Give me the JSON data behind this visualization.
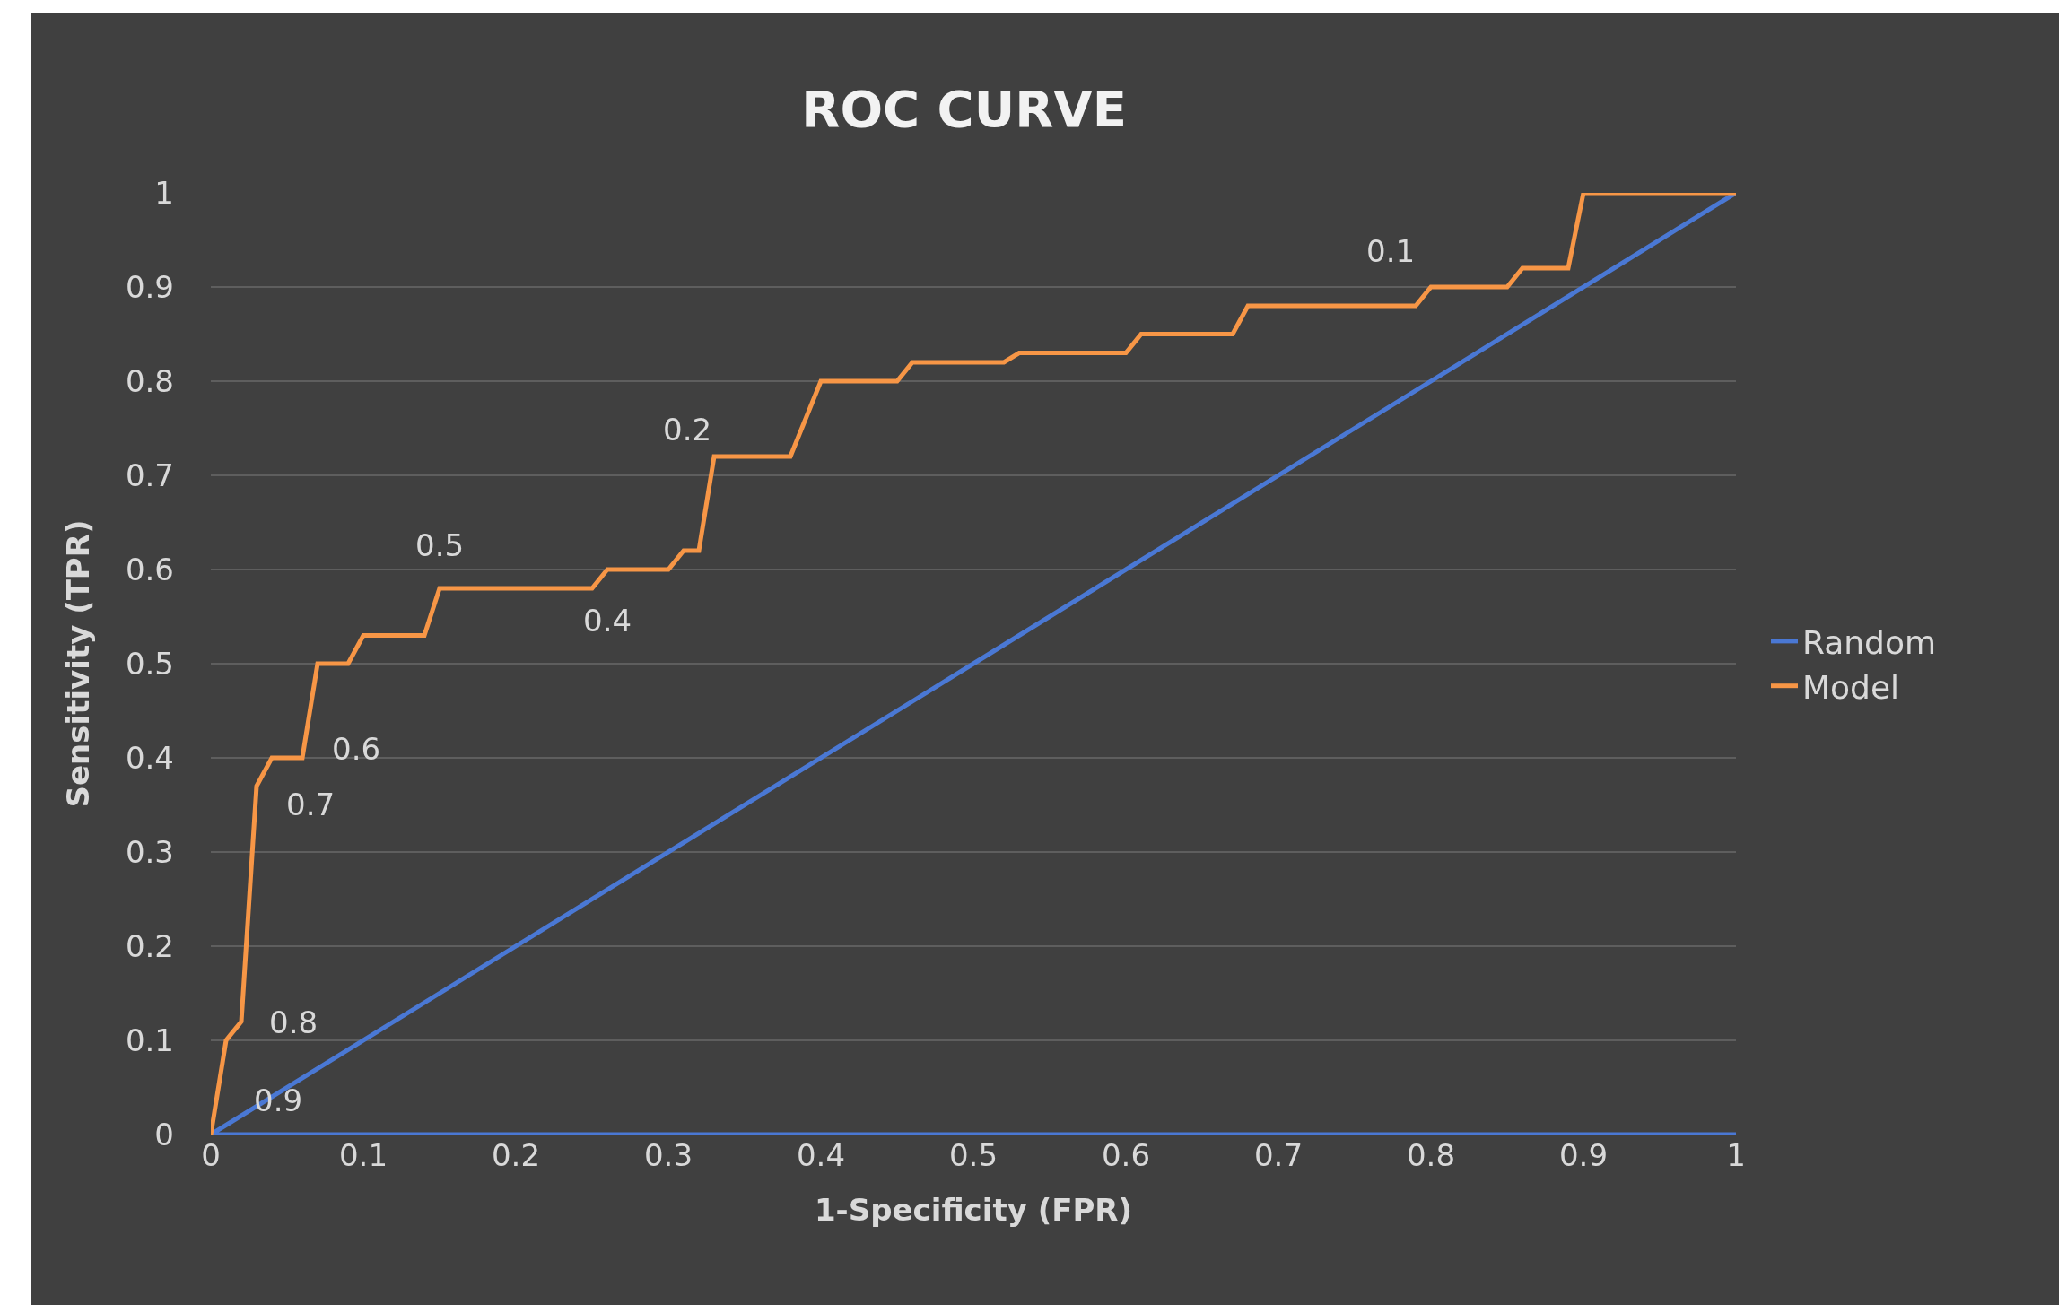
{
  "chart_data": {
    "type": "line",
    "title": "ROC CURVE",
    "xlabel": "1-Specificity (FPR)",
    "ylabel": "Sensitivity (TPR)",
    "xlim": [
      0,
      1
    ],
    "ylim": [
      0,
      1
    ],
    "xticks": [
      0,
      0.1,
      0.2,
      0.3,
      0.4,
      0.5,
      0.6,
      0.7,
      0.8,
      0.9,
      1
    ],
    "yticks": [
      0,
      0.1,
      0.2,
      0.3,
      0.4,
      0.5,
      0.6,
      0.7,
      0.8,
      0.9,
      1
    ],
    "grid": "y",
    "legend": "right",
    "marker": "none",
    "line_style": "solid",
    "series": [
      {
        "name": "Random",
        "color": "#4a78d4",
        "x": [
          1,
          0,
          0.5,
          1
        ],
        "values": [
          0,
          0,
          0.5,
          1
        ]
      },
      {
        "name": "Model",
        "color": "#f79646",
        "x": [
          0,
          0.01,
          0.02,
          0.03,
          0.04,
          0.06,
          0.07,
          0.09,
          0.1,
          0.14,
          0.15,
          0.25,
          0.26,
          0.3,
          0.31,
          0.32,
          0.33,
          0.38,
          0.4,
          0.45,
          0.46,
          0.52,
          0.53,
          0.6,
          0.61,
          0.67,
          0.68,
          0.79,
          0.8,
          0.85,
          0.86,
          0.89,
          0.9,
          1
        ],
        "values": [
          0,
          0.1,
          0.12,
          0.37,
          0.4,
          0.4,
          0.5,
          0.5,
          0.53,
          0.53,
          0.58,
          0.58,
          0.6,
          0.6,
          0.62,
          0.62,
          0.72,
          0.72,
          0.8,
          0.8,
          0.82,
          0.82,
          0.83,
          0.83,
          0.85,
          0.85,
          0.88,
          0.88,
          0.9,
          0.9,
          0.92,
          0.92,
          1,
          1
        ]
      }
    ],
    "annotations": [
      {
        "text": "0.9",
        "x": 0,
        "y": 0
      },
      {
        "text": "0.8",
        "x": 0.01,
        "y": 0.1
      },
      {
        "text": "0.7",
        "x": 0.03,
        "y": 0.37
      },
      {
        "text": "0.6",
        "x": 0.06,
        "y": 0.4
      },
      {
        "text": "0.5",
        "x": 0.15,
        "y": 0.58
      },
      {
        "text": "0.4",
        "x": 0.26,
        "y": 0.6
      },
      {
        "text": "0.2",
        "x": 0.33,
        "y": 0.72
      },
      {
        "text": "0.1",
        "x": 0.8,
        "y": 0.9
      }
    ]
  }
}
